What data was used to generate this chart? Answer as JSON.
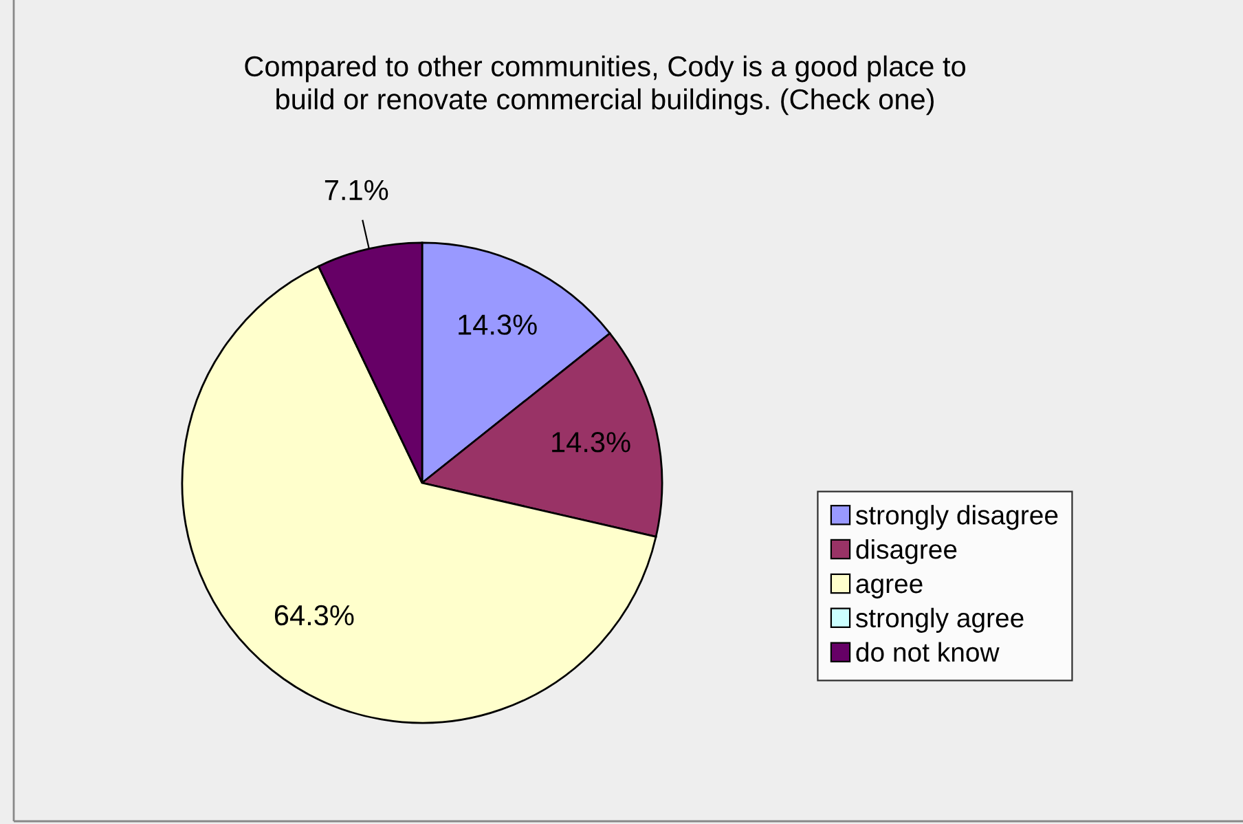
{
  "chart_data": {
    "type": "pie",
    "title": "Compared to other communities, Cody is a good place to\nbuild or renovate commercial buildings. (Check one)",
    "categories": [
      "strongly disagree",
      "disagree",
      "agree",
      "strongly agree",
      "do not know"
    ],
    "values": [
      14.3,
      14.3,
      64.3,
      0,
      7.1
    ],
    "colors": [
      "#9999ff",
      "#993366",
      "#ffffcc",
      "#ccffff",
      "#660066"
    ],
    "value_labels": [
      "14.3%",
      "14.3%",
      "64.3%",
      null,
      "7.1%"
    ],
    "legend": "right"
  }
}
